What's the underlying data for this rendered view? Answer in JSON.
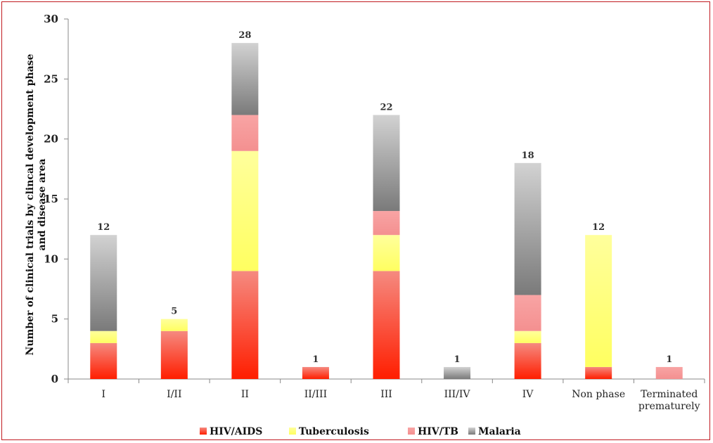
{
  "chart_data": {
    "type": "bar",
    "stacked": true,
    "title": "",
    "xlabel": "",
    "ylabel_lines": [
      "Number of clinical trials by clincal development phase",
      "and disease area"
    ],
    "ylim": [
      0,
      30
    ],
    "yticks": [
      0,
      5,
      10,
      15,
      20,
      25,
      30
    ],
    "grid": false,
    "legend_position": "bottom",
    "categories": [
      [
        "I"
      ],
      [
        "I/II"
      ],
      [
        "II"
      ],
      [
        "II/III"
      ],
      [
        "III"
      ],
      [
        "III/IV"
      ],
      [
        "IV"
      ],
      [
        "Non phase"
      ],
      [
        "Terminated",
        "prematurely"
      ]
    ],
    "series": [
      {
        "name": "HIV/AIDS",
        "color": "#ff2000",
        "values": [
          3,
          4,
          9,
          1,
          9,
          0,
          3,
          1,
          0
        ]
      },
      {
        "name": "Tuberculosis",
        "color": "#ffff80",
        "values": [
          1,
          1,
          10,
          0,
          3,
          0,
          1,
          11,
          0
        ]
      },
      {
        "name": "HIV/TB",
        "color": "#f89a9a",
        "values": [
          0,
          0,
          3,
          0,
          2,
          0,
          3,
          0,
          1
        ]
      },
      {
        "name": "Malaria",
        "color": "#9a9a9a",
        "values": [
          8,
          0,
          6,
          0,
          8,
          1,
          11,
          0,
          0
        ]
      }
    ],
    "totals": [
      12,
      5,
      28,
      1,
      22,
      1,
      18,
      12,
      1
    ]
  }
}
